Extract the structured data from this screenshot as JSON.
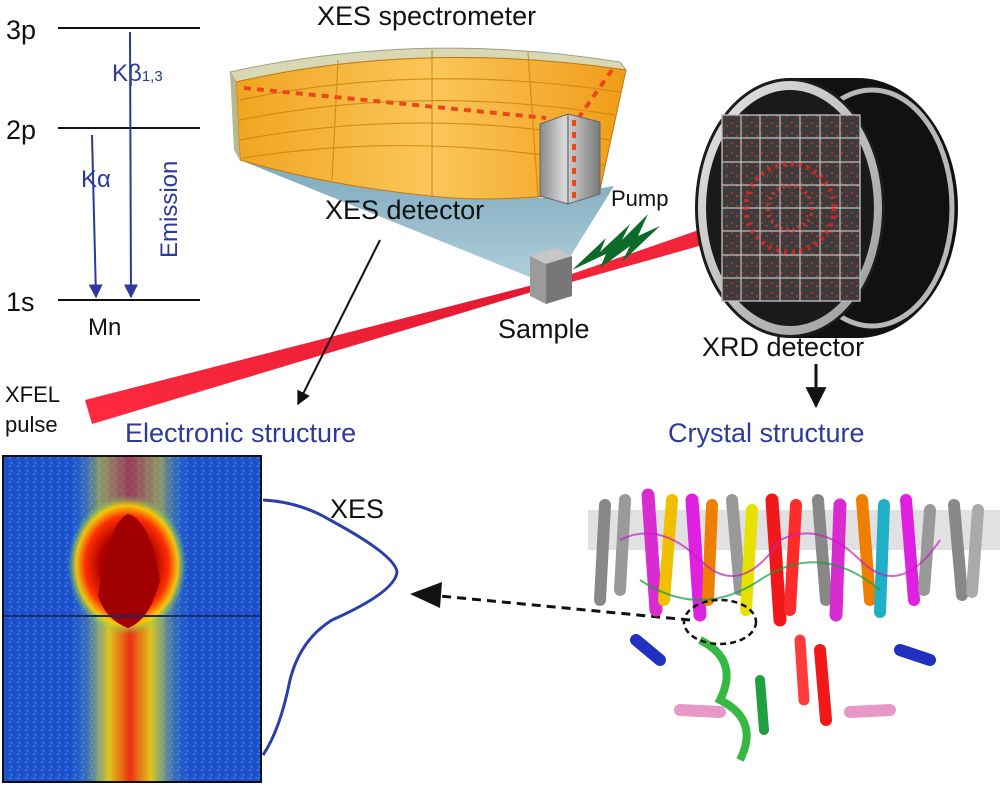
{
  "colors": {
    "level_line": "#111111",
    "transition_arrow": "#2b3a9b",
    "label_blue": "#2b3a9b",
    "spectrometer_orange": "#f5a623",
    "detector_cone": "#8fb6c8",
    "xfel_beam": "#f2243a",
    "pump_green": "#0d6b2a",
    "xes_curve": "#2b3fa8",
    "xrd_housing": "#111111"
  },
  "energy_levels": {
    "level_3p": "3p",
    "level_2p": "2p",
    "level_1s": "1s",
    "element": "Mn",
    "k_alpha": "Kα",
    "k_beta": "Kβ",
    "k_beta_sub": "1,3",
    "emission": "Emission"
  },
  "labels": {
    "xes_spectrometer": "XES spectrometer",
    "xes_detector": "XES detector",
    "pump": "Pump",
    "sample": "Sample",
    "xrd_detector": "XRD detector",
    "xfel_line1": "XFEL",
    "xfel_line2": "pulse",
    "electronic_structure": "Electronic structure",
    "crystal_structure": "Crystal structure",
    "xes": "XES"
  },
  "icons": {
    "xes_image": "xes-emission-image",
    "protein": "protein-cartoon-icon",
    "xrd": "xrd-detector-icon",
    "spectrometer": "crystal-spectrometer-icon"
  }
}
